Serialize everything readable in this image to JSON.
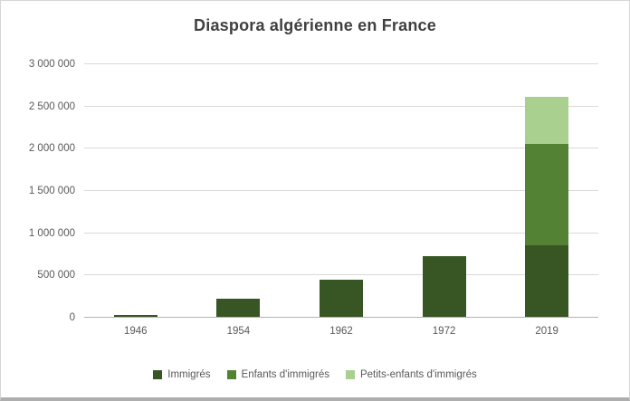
{
  "title": "Diaspora algérienne en France",
  "colors": {
    "background": "#ffffff",
    "title_text": "#404040",
    "axis_text": "#595959",
    "gridline": "#d9d9d9",
    "axis_line": "#b3b3b3"
  },
  "chart_data": {
    "type": "bar",
    "stacked": true,
    "title": "Diaspora algérienne en France",
    "categories": [
      "1946",
      "1954",
      "1962",
      "1972",
      "2019"
    ],
    "series": [
      {
        "name": "Immigrés",
        "color": "#375623",
        "values": [
          22000,
          212000,
          440000,
          720000,
          850000
        ]
      },
      {
        "name": "Enfants d'immigrés",
        "color": "#548235",
        "values": [
          0,
          0,
          0,
          0,
          1200000
        ]
      },
      {
        "name": "Petits-enfants d'immigrés",
        "color": "#a9d08e",
        "values": [
          0,
          0,
          0,
          0,
          550000
        ]
      }
    ],
    "ylim": [
      0,
      3000000
    ],
    "ytick_step": 500000,
    "ytick_labels": [
      "0",
      "500 000",
      "1 000 000",
      "1 500 000",
      "2 000 000",
      "2 500 000",
      "3 000 000"
    ],
    "xlabel": "",
    "ylabel": "",
    "grid": true,
    "legend_position": "bottom"
  }
}
